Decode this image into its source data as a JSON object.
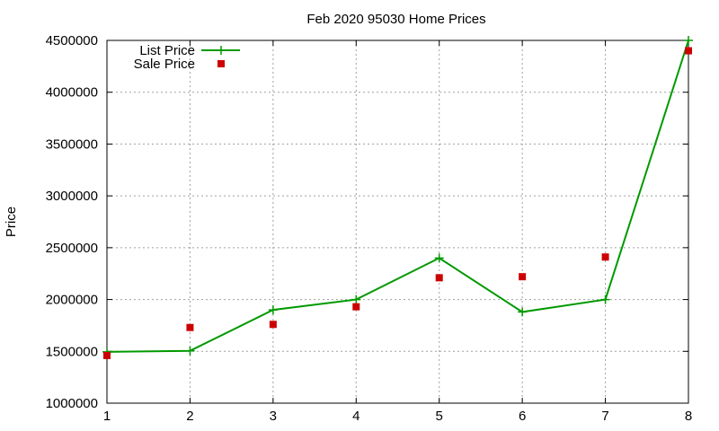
{
  "chart_data": {
    "type": "line",
    "title": "Feb 2020 95030 Home Prices",
    "xlabel": "",
    "ylabel": "Price",
    "x": [
      1,
      2,
      3,
      4,
      5,
      6,
      7,
      8
    ],
    "xlim": [
      1,
      8
    ],
    "ylim": [
      1000000,
      4500000
    ],
    "xticks": [
      "1",
      "2",
      "3",
      "4",
      "5",
      "6",
      "7",
      "8"
    ],
    "yticks": [
      "1000000",
      "1500000",
      "2000000",
      "2500000",
      "3000000",
      "3500000",
      "4000000",
      "4500000"
    ],
    "grid": true,
    "legend_position": "top-left",
    "series": [
      {
        "name": "List Price",
        "style": "line-with-plus-markers",
        "color": "#009900",
        "values": [
          1495000,
          1505000,
          1900000,
          2000000,
          2400000,
          1880000,
          2000000,
          4500000
        ]
      },
      {
        "name": "Sale Price",
        "style": "square-markers",
        "color": "#cc0000",
        "values": [
          1460000,
          1730000,
          1760000,
          1930000,
          2210000,
          2220000,
          2410000,
          4400000
        ]
      }
    ]
  }
}
